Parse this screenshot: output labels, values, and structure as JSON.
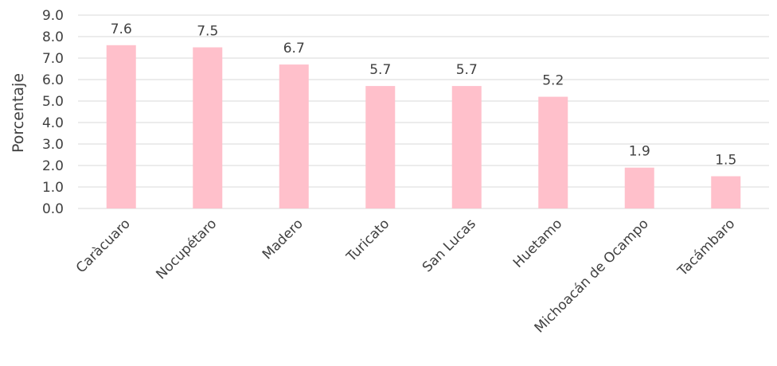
{
  "chart_data": {
    "type": "bar",
    "categories": [
      "Caràcuaro",
      "Nocupétaro",
      "Madero",
      "Turicato",
      "San Lucas",
      "Huetamo",
      "Michoacán de Ocampo",
      "Tacámbaro"
    ],
    "values": [
      7.6,
      7.5,
      6.7,
      5.7,
      5.7,
      5.2,
      1.9,
      1.5
    ],
    "value_labels": [
      "7.6",
      "7.5",
      "6.7",
      "5.7",
      "5.7",
      "5.2",
      "1.9",
      "1.5"
    ],
    "title": "",
    "xlabel": "",
    "ylabel": "Porcentaje",
    "ylim": [
      0,
      9
    ],
    "yticks": [
      "0.0",
      "1.0",
      "2.0",
      "3.0",
      "4.0",
      "5.0",
      "6.0",
      "7.0",
      "8.0",
      "9.0"
    ],
    "grid": true,
    "legend": "none",
    "bar_color": "#ffc0cb",
    "grid_color": "#d9d9d9",
    "text_color": "#404040"
  }
}
